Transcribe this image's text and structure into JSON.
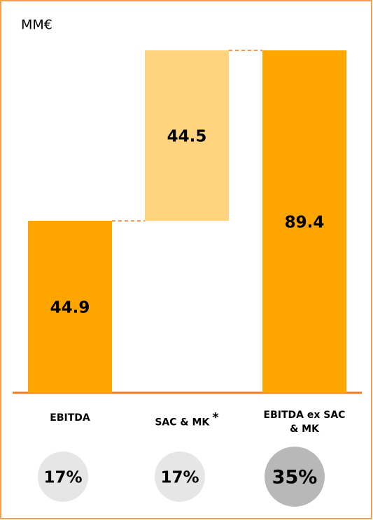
{
  "chart_data": {
    "type": "waterfall",
    "unit_label": "MM€",
    "categories": [
      "EBITDA",
      "SAC & MK",
      "EBITDA ex SAC & MK"
    ],
    "footnote_markers": [
      null,
      "*",
      null
    ],
    "measures": [
      "absolute",
      "relative",
      "total"
    ],
    "values": [
      44.9,
      44.5,
      89.4
    ],
    "colors": [
      "#ffa500",
      "#ffd47f",
      "#ffa500"
    ],
    "connector_color": "#f47b20",
    "margins": {
      "values": [
        17,
        17,
        35
      ],
      "value_labels": [
        "17%",
        "17%",
        "35%"
      ],
      "colors": [
        "#e6e6e6",
        "#e6e6e6",
        "#b8b8b8"
      ]
    }
  }
}
